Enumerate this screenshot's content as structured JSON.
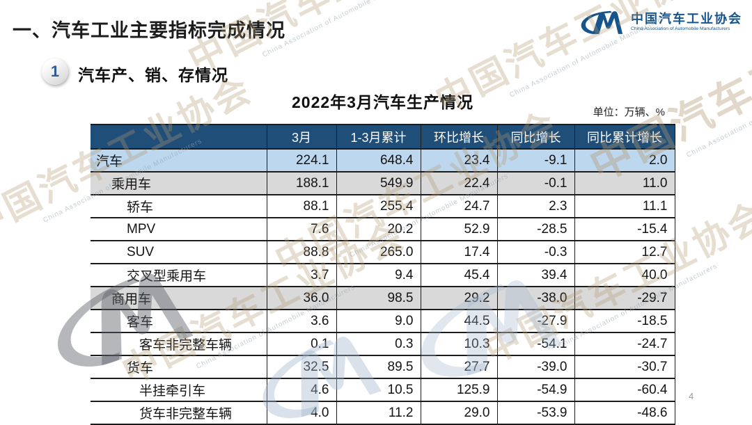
{
  "slide": {
    "title": "一、汽车工业主要指标完成情况",
    "page_number": "4"
  },
  "logo": {
    "monogram": "CM",
    "name_cn": "中国汽车工业协会",
    "name_en": "China Association of Automobile Manufacturers"
  },
  "section": {
    "number": "1",
    "title": "汽车产、销、存情况"
  },
  "table": {
    "title": "2022年3月汽车生产情况",
    "unit_label": "单位：万辆、%",
    "columns": [
      "",
      "3月",
      "1-3月累计",
      "环比增长",
      "同比增长",
      "同比累计增长"
    ],
    "rows": [
      {
        "label": "汽车",
        "indent": 1,
        "style": "blue",
        "values": [
          "224.1",
          "648.4",
          "23.4",
          "-9.1",
          "2.0"
        ]
      },
      {
        "label": "乘用车",
        "indent": 2,
        "style": "gray",
        "values": [
          "188.1",
          "549.9",
          "22.4",
          "-0.1",
          "11.0"
        ]
      },
      {
        "label": "轿车",
        "indent": 3,
        "style": "white",
        "values": [
          "88.1",
          "255.4",
          "24.7",
          "2.3",
          "11.1"
        ]
      },
      {
        "label": "MPV",
        "indent": 3,
        "style": "white",
        "values": [
          "7.6",
          "20.2",
          "52.9",
          "-28.5",
          "-15.4"
        ]
      },
      {
        "label": "SUV",
        "indent": 3,
        "style": "white",
        "values": [
          "88.8",
          "265.0",
          "17.4",
          "-0.3",
          "12.7"
        ]
      },
      {
        "label": "交叉型乘用车",
        "indent": 3,
        "style": "white",
        "values": [
          "3.7",
          "9.4",
          "45.4",
          "39.4",
          "40.0"
        ]
      },
      {
        "label": "商用车",
        "indent": 2,
        "style": "gray",
        "values": [
          "36.0",
          "98.5",
          "29.2",
          "-38.0",
          "-29.7"
        ]
      },
      {
        "label": "客车",
        "indent": 3,
        "style": "white",
        "values": [
          "3.6",
          "9.0",
          "44.5",
          "-27.9",
          "-18.5"
        ]
      },
      {
        "label": "客车非完整车辆",
        "indent": 4,
        "style": "white",
        "values": [
          "0.1",
          "0.3",
          "10.3",
          "-54.1",
          "-24.7"
        ]
      },
      {
        "label": "货车",
        "indent": 3,
        "style": "white",
        "values": [
          "32.5",
          "89.5",
          "27.7",
          "-39.0",
          "-30.7"
        ]
      },
      {
        "label": "半挂牵引车",
        "indent": 4,
        "style": "white",
        "values": [
          "4.6",
          "10.5",
          "125.9",
          "-54.9",
          "-60.4"
        ]
      },
      {
        "label": "货车非完整车辆",
        "indent": 4,
        "style": "white",
        "values": [
          "4.0",
          "11.2",
          "29.0",
          "-53.9",
          "-48.6"
        ]
      }
    ]
  },
  "watermark": {
    "text": "中国汽车工业协会",
    "subtext": "China Association of Automobile Manufacturers"
  },
  "colors": {
    "header_bg": "#1F4E79",
    "row_highlight_blue": "#BDD7EE",
    "row_highlight_gray": "#D9D9D9",
    "logo_blue": "#17548C",
    "badge_number_blue": "#2E5B9A"
  }
}
